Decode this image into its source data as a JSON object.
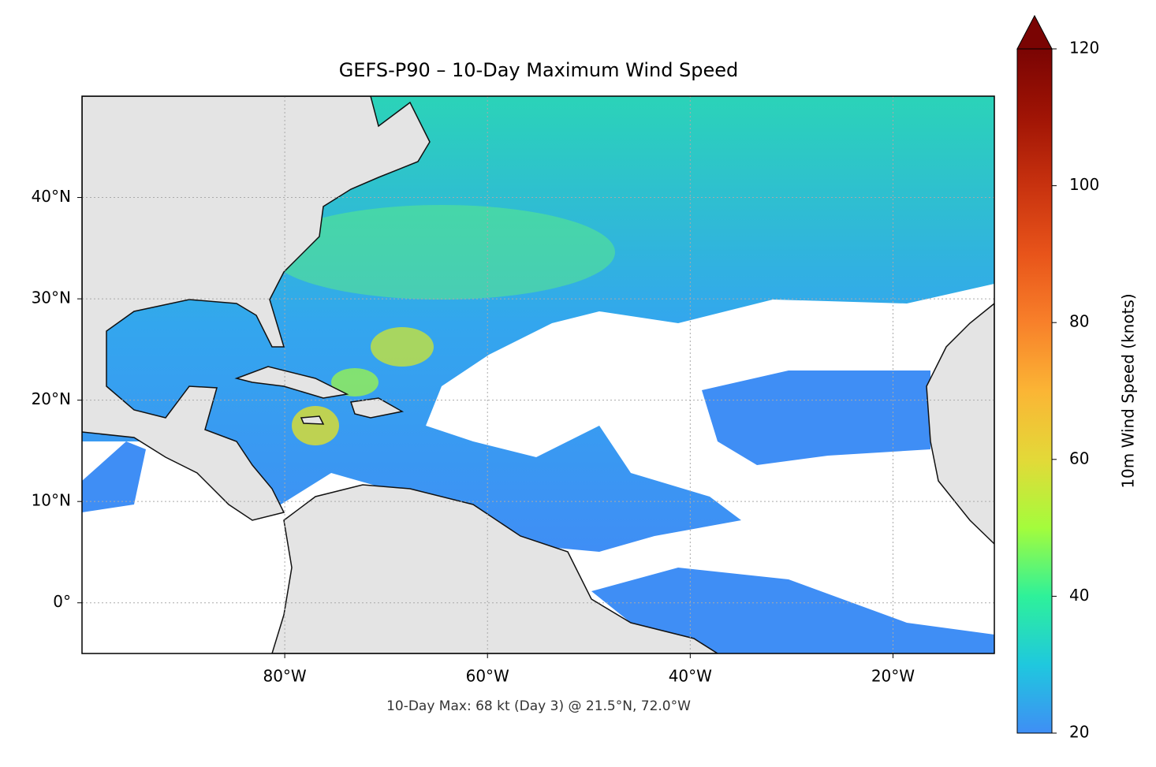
{
  "chart_data": {
    "type": "map",
    "title": "GEFS-P90 – 10-Day Maximum Wind Speed",
    "annotation": "10-Day Max: 68 kt (Day 3) @ 21.5°N, 72.0°W",
    "xlim": [
      -100,
      -10
    ],
    "xticks": [
      {
        "value": -80,
        "label": "80°W"
      },
      {
        "value": -60,
        "label": "60°W"
      },
      {
        "value": -40,
        "label": "40°W"
      },
      {
        "value": -20,
        "label": "20°W"
      }
    ],
    "ylim": [
      -5,
      50
    ],
    "yticks": [
      {
        "value": 0,
        "label": "0°"
      },
      {
        "value": 10,
        "label": "10°N"
      },
      {
        "value": 20,
        "label": "20°N"
      },
      {
        "value": 30,
        "label": "30°N"
      },
      {
        "value": 40,
        "label": "40°N"
      }
    ],
    "grid": true,
    "colorbar": {
      "label": "10m Wind Speed (knots)",
      "lim": [
        20,
        120
      ],
      "ticks": [
        20,
        40,
        60,
        80,
        100,
        120
      ],
      "colors": [
        "#3f8ef5",
        "#1fc8de",
        "#2ef19a",
        "#a4fc3c",
        "#e3d938",
        "#fbb535",
        "#f8802a",
        "#e8541a",
        "#c8320f",
        "#a01405",
        "#7a0403"
      ]
    }
  }
}
